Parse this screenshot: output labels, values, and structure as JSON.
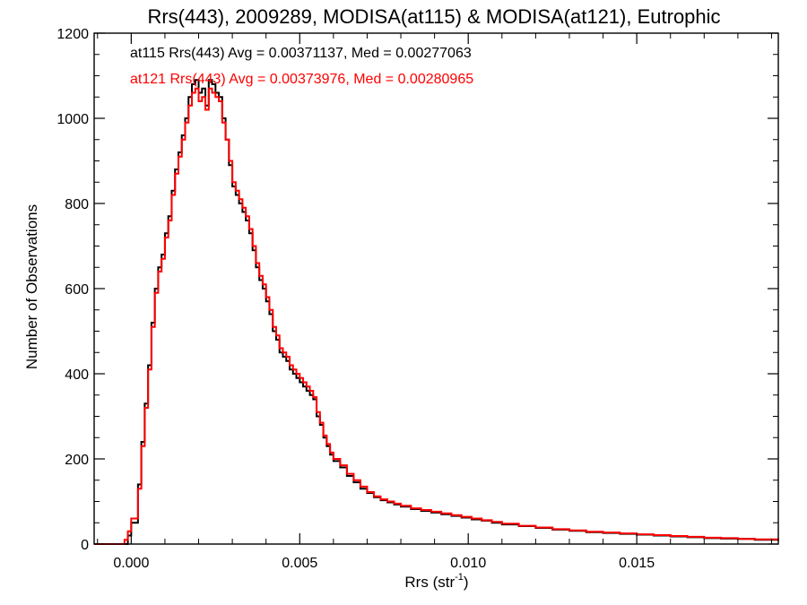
{
  "chart_data": {
    "type": "line",
    "drawstyle": "steps",
    "title": "Rrs(443), 2009289, MODISA(at115) & MODISA(at121), Eutrophic",
    "xlabel": "Rrs (str",
    "xlabel_sup": "-1",
    "xlabel_end": ")",
    "ylabel": "Number of Observations",
    "xlim": [
      -0.0011,
      0.0192
    ],
    "ylim": [
      0,
      1200
    ],
    "x_ticks": [
      0.0,
      0.005,
      0.01,
      0.015
    ],
    "x_tick_labels": [
      "0.000",
      "0.005",
      "0.010",
      "0.015"
    ],
    "y_ticks": [
      0,
      200,
      400,
      600,
      800,
      1000,
      1200
    ],
    "y_tick_labels": [
      "0",
      "200",
      "400",
      "600",
      "800",
      "1000",
      "1200"
    ],
    "grid": false,
    "legend_position": "top-left",
    "series": [
      {
        "name": "at115",
        "color": "#000000",
        "label": "at115 Rrs(443) Avg = 0.00371137, Med = 0.00277063",
        "points": [
          [
            -0.0011,
            0
          ],
          [
            -0.0002,
            0
          ],
          [
            -0.0001,
            20
          ],
          [
            0.0,
            50
          ],
          [
            0.0002,
            140
          ],
          [
            0.0003,
            240
          ],
          [
            0.0004,
            330
          ],
          [
            0.0005,
            420
          ],
          [
            0.0006,
            520
          ],
          [
            0.0007,
            600
          ],
          [
            0.0008,
            650
          ],
          [
            0.0009,
            680
          ],
          [
            0.001,
            730
          ],
          [
            0.0011,
            770
          ],
          [
            0.0012,
            830
          ],
          [
            0.0013,
            880
          ],
          [
            0.0014,
            920
          ],
          [
            0.0015,
            960
          ],
          [
            0.0016,
            1000
          ],
          [
            0.0017,
            1050
          ],
          [
            0.0018,
            1080
          ],
          [
            0.0019,
            1090
          ],
          [
            0.002,
            1060
          ],
          [
            0.0021,
            1070
          ],
          [
            0.0022,
            1030
          ],
          [
            0.0023,
            1090
          ],
          [
            0.0024,
            1080
          ],
          [
            0.0025,
            1060
          ],
          [
            0.0026,
            1050
          ],
          [
            0.0027,
            1000
          ],
          [
            0.0028,
            950
          ],
          [
            0.0029,
            890
          ],
          [
            0.003,
            840
          ],
          [
            0.0031,
            820
          ],
          [
            0.0032,
            800
          ],
          [
            0.0033,
            780
          ],
          [
            0.0034,
            760
          ],
          [
            0.0035,
            730
          ],
          [
            0.0036,
            690
          ],
          [
            0.0037,
            650
          ],
          [
            0.0038,
            620
          ],
          [
            0.0039,
            600
          ],
          [
            0.004,
            570
          ],
          [
            0.0041,
            540
          ],
          [
            0.0042,
            500
          ],
          [
            0.0043,
            480
          ],
          [
            0.0044,
            450
          ],
          [
            0.0045,
            440
          ],
          [
            0.0046,
            430
          ],
          [
            0.0047,
            410
          ],
          [
            0.0048,
            400
          ],
          [
            0.0049,
            390
          ],
          [
            0.005,
            380
          ],
          [
            0.0051,
            370
          ],
          [
            0.0052,
            360
          ],
          [
            0.0053,
            350
          ],
          [
            0.0054,
            340
          ],
          [
            0.0055,
            300
          ],
          [
            0.0056,
            280
          ],
          [
            0.0057,
            250
          ],
          [
            0.0058,
            230
          ],
          [
            0.0059,
            210
          ],
          [
            0.006,
            195
          ],
          [
            0.0062,
            180
          ],
          [
            0.0064,
            160
          ],
          [
            0.0066,
            145
          ],
          [
            0.0068,
            130
          ],
          [
            0.007,
            120
          ],
          [
            0.0072,
            110
          ],
          [
            0.0074,
            103
          ],
          [
            0.0076,
            98
          ],
          [
            0.0078,
            93
          ],
          [
            0.008,
            88
          ],
          [
            0.0083,
            82
          ],
          [
            0.0086,
            78
          ],
          [
            0.0089,
            74
          ],
          [
            0.0092,
            70
          ],
          [
            0.0095,
            66
          ],
          [
            0.0098,
            62
          ],
          [
            0.0101,
            58
          ],
          [
            0.0104,
            55
          ],
          [
            0.0107,
            50
          ],
          [
            0.011,
            46
          ],
          [
            0.0115,
            42
          ],
          [
            0.012,
            38
          ],
          [
            0.0125,
            34
          ],
          [
            0.013,
            31
          ],
          [
            0.0135,
            28
          ],
          [
            0.014,
            26
          ],
          [
            0.0145,
            24
          ],
          [
            0.015,
            22
          ],
          [
            0.0155,
            20
          ],
          [
            0.016,
            18
          ],
          [
            0.0165,
            16
          ],
          [
            0.017,
            14
          ],
          [
            0.0175,
            13
          ],
          [
            0.018,
            12
          ],
          [
            0.0185,
            10
          ],
          [
            0.0192,
            8
          ]
        ]
      },
      {
        "name": "at121",
        "color": "#ff0000",
        "label": "at121 Rrs(443) Avg = 0.00373976, Med = 0.00280965",
        "points": [
          [
            -0.0011,
            0
          ],
          [
            -0.0003,
            0
          ],
          [
            -0.0002,
            10
          ],
          [
            -0.0001,
            30
          ],
          [
            0.0,
            60
          ],
          [
            0.0002,
            130
          ],
          [
            0.0003,
            230
          ],
          [
            0.0004,
            320
          ],
          [
            0.0005,
            410
          ],
          [
            0.0006,
            510
          ],
          [
            0.0007,
            590
          ],
          [
            0.0008,
            640
          ],
          [
            0.0009,
            670
          ],
          [
            0.001,
            720
          ],
          [
            0.0011,
            760
          ],
          [
            0.0012,
            820
          ],
          [
            0.0013,
            870
          ],
          [
            0.0014,
            910
          ],
          [
            0.0015,
            950
          ],
          [
            0.0016,
            990
          ],
          [
            0.0017,
            1030
          ],
          [
            0.0018,
            1060
          ],
          [
            0.0019,
            1070
          ],
          [
            0.002,
            1040
          ],
          [
            0.0021,
            1050
          ],
          [
            0.0022,
            1020
          ],
          [
            0.0023,
            1070
          ],
          [
            0.0024,
            1060
          ],
          [
            0.0025,
            1050
          ],
          [
            0.0026,
            1040
          ],
          [
            0.0027,
            990
          ],
          [
            0.0028,
            950
          ],
          [
            0.0029,
            900
          ],
          [
            0.003,
            850
          ],
          [
            0.0031,
            830
          ],
          [
            0.0032,
            810
          ],
          [
            0.0033,
            790
          ],
          [
            0.0034,
            770
          ],
          [
            0.0035,
            740
          ],
          [
            0.0036,
            700
          ],
          [
            0.0037,
            660
          ],
          [
            0.0038,
            630
          ],
          [
            0.0039,
            610
          ],
          [
            0.004,
            580
          ],
          [
            0.0041,
            550
          ],
          [
            0.0042,
            510
          ],
          [
            0.0043,
            490
          ],
          [
            0.0044,
            460
          ],
          [
            0.0045,
            450
          ],
          [
            0.0046,
            440
          ],
          [
            0.0047,
            420
          ],
          [
            0.0048,
            410
          ],
          [
            0.0049,
            400
          ],
          [
            0.005,
            390
          ],
          [
            0.0051,
            380
          ],
          [
            0.0052,
            370
          ],
          [
            0.0053,
            360
          ],
          [
            0.0054,
            345
          ],
          [
            0.0055,
            310
          ],
          [
            0.0056,
            285
          ],
          [
            0.0057,
            255
          ],
          [
            0.0058,
            235
          ],
          [
            0.0059,
            215
          ],
          [
            0.006,
            200
          ],
          [
            0.0062,
            185
          ],
          [
            0.0064,
            165
          ],
          [
            0.0066,
            150
          ],
          [
            0.0068,
            135
          ],
          [
            0.007,
            122
          ],
          [
            0.0072,
            112
          ],
          [
            0.0074,
            105
          ],
          [
            0.0076,
            100
          ],
          [
            0.0078,
            95
          ],
          [
            0.008,
            90
          ],
          [
            0.0083,
            84
          ],
          [
            0.0086,
            80
          ],
          [
            0.0089,
            76
          ],
          [
            0.0092,
            72
          ],
          [
            0.0095,
            68
          ],
          [
            0.0098,
            64
          ],
          [
            0.0101,
            60
          ],
          [
            0.0104,
            56
          ],
          [
            0.0107,
            52
          ],
          [
            0.011,
            48
          ],
          [
            0.0115,
            43
          ],
          [
            0.012,
            39
          ],
          [
            0.0125,
            35
          ],
          [
            0.013,
            32
          ],
          [
            0.0135,
            29
          ],
          [
            0.014,
            27
          ],
          [
            0.0145,
            25
          ],
          [
            0.015,
            23
          ],
          [
            0.0155,
            21
          ],
          [
            0.016,
            19
          ],
          [
            0.0165,
            17
          ],
          [
            0.017,
            15
          ],
          [
            0.0175,
            14
          ],
          [
            0.018,
            12
          ],
          [
            0.0185,
            11
          ],
          [
            0.0192,
            9
          ]
        ]
      }
    ]
  }
}
